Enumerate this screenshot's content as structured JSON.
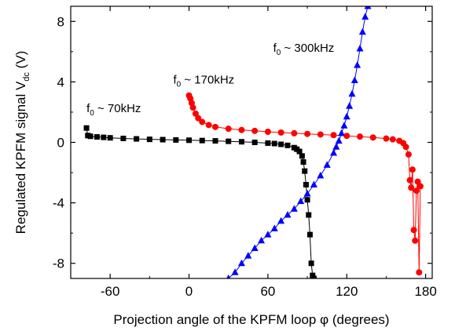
{
  "chart_data": {
    "type": "scatter",
    "title": "",
    "xlabel": "Projection angle of the KPFM loop φ (degrees)",
    "ylabel_main": "Regulated KPFM signal V",
    "ylabel_sub": "dc",
    "ylabel_unit": " (V)",
    "xlim": [
      -90,
      185
    ],
    "ylim": [
      -9,
      9
    ],
    "xticks": [
      -60,
      0,
      60,
      120,
      180
    ],
    "yticks": [
      -8,
      -4,
      0,
      4,
      8
    ],
    "xtick_labels": [
      "-60",
      "0",
      "60",
      "120",
      "180"
    ],
    "ytick_labels": [
      "-8",
      "-4",
      "0",
      "4",
      "8"
    ],
    "grid": false,
    "series": [
      {
        "name": "f0 ~ 70kHz",
        "color": "#000000",
        "marker": "square",
        "line": true,
        "x": [
          -78,
          -77,
          -75,
          -70,
          -65,
          -60,
          -50,
          -40,
          -30,
          -20,
          -10,
          0,
          10,
          20,
          30,
          40,
          50,
          60,
          65,
          70,
          75,
          80,
          82,
          84,
          86,
          87,
          88,
          89,
          90,
          91,
          92,
          93,
          94,
          95
        ],
        "y": [
          0.95,
          0.45,
          0.4,
          0.36,
          0.33,
          0.3,
          0.26,
          0.23,
          0.2,
          0.18,
          0.16,
          0.14,
          0.12,
          0.1,
          0.07,
          0.04,
          0.0,
          -0.05,
          -0.08,
          -0.13,
          -0.2,
          -0.35,
          -0.45,
          -0.6,
          -0.9,
          -1.3,
          -1.9,
          -2.8,
          -3.8,
          -4.8,
          -6.1,
          -8.0,
          -8.8,
          -9.0
        ]
      },
      {
        "name": "f0 ~ 170kHz",
        "color": "#ff0000",
        "marker": "circle",
        "line": true,
        "x": [
          0,
          1,
          2,
          3,
          5,
          7,
          10,
          15,
          20,
          30,
          40,
          50,
          60,
          70,
          80,
          90,
          100,
          110,
          120,
          130,
          140,
          150,
          155,
          160,
          163,
          165,
          167,
          168,
          169,
          170,
          171,
          172,
          173,
          174,
          175,
          176
        ],
        "y": [
          3.1,
          2.9,
          2.6,
          2.3,
          1.9,
          1.6,
          1.35,
          1.15,
          1.02,
          0.9,
          0.82,
          0.76,
          0.7,
          0.65,
          0.6,
          0.56,
          0.52,
          0.48,
          0.43,
          0.38,
          0.32,
          0.25,
          0.2,
          0.1,
          -0.05,
          -0.3,
          -0.8,
          -2.5,
          -3.0,
          -1.8,
          -5.8,
          -6.5,
          -3.2,
          -2.6,
          -8.6,
          -2.9
        ]
      },
      {
        "name": "f0 ~ 300kHz",
        "color": "#0000ff",
        "marker": "triangle",
        "line": true,
        "x": [
          30,
          35,
          40,
          45,
          50,
          55,
          60,
          65,
          70,
          75,
          80,
          85,
          90,
          95,
          100,
          105,
          110,
          112,
          114,
          116,
          118,
          120,
          122,
          124,
          126,
          128,
          130,
          132,
          134,
          136
        ],
        "y": [
          -9.0,
          -8.6,
          -8.0,
          -7.5,
          -7.0,
          -6.5,
          -6.1,
          -5.7,
          -5.2,
          -4.8,
          -4.4,
          -3.9,
          -3.4,
          -2.8,
          -2.2,
          -1.5,
          -0.7,
          -0.3,
          0.1,
          0.6,
          1.1,
          1.7,
          2.4,
          3.2,
          4.1,
          5.1,
          6.2,
          7.3,
          8.3,
          9.0
        ]
      }
    ],
    "annotations": [
      {
        "base": "f",
        "sub": "0",
        "rest": " ~ 70kHz",
        "series": "f0 ~ 70kHz"
      },
      {
        "base": "f",
        "sub": "0",
        "rest": " ~ 170kHz",
        "series": "f0 ~ 170kHz"
      },
      {
        "base": "f",
        "sub": "0",
        "rest": " ~ 300kHz",
        "series": "f0 ~ 300kHz"
      }
    ]
  }
}
